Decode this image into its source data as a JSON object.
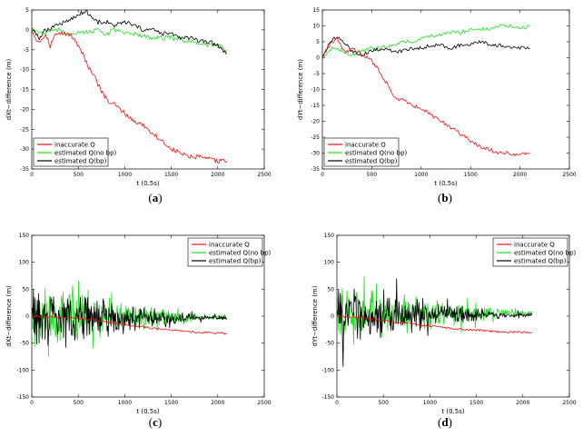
{
  "figure": {
    "panel_labels": [
      {
        "open": "(",
        "letter": "a",
        "close": ")"
      },
      {
        "open": "(",
        "letter": "b",
        "close": ")"
      },
      {
        "open": "(",
        "letter": "c",
        "close": ")"
      },
      {
        "open": "(",
        "letter": "d",
        "close": ")"
      }
    ]
  },
  "chart_data": [
    {
      "type": "line",
      "panel": "a",
      "xlabel": "t (0.5s)",
      "ylabel": "dXt−difference (m)",
      "xlim": [
        0,
        2500
      ],
      "ylim": [
        -35,
        5
      ],
      "xticks": [
        0,
        500,
        1000,
        1500,
        2000,
        2500
      ],
      "yticks": [
        5,
        0,
        -5,
        -10,
        -15,
        -20,
        -25,
        -30,
        -35
      ],
      "legend_position": "bottom-left",
      "series": [
        {
          "name": "inaccurate Q",
          "color": "#ee1111",
          "points": [
            [
              0,
              0
            ],
            [
              40,
              -2
            ],
            [
              80,
              -3
            ],
            [
              150,
              -1
            ],
            [
              200,
              -4
            ],
            [
              230,
              -2
            ],
            [
              270,
              -1
            ],
            [
              320,
              -1
            ],
            [
              400,
              -1
            ],
            [
              480,
              -3
            ],
            [
              550,
              -6
            ],
            [
              600,
              -9
            ],
            [
              650,
              -11
            ],
            [
              700,
              -13
            ],
            [
              760,
              -16
            ],
            [
              820,
              -18
            ],
            [
              900,
              -19
            ],
            [
              1000,
              -21
            ],
            [
              1100,
              -23
            ],
            [
              1200,
              -24
            ],
            [
              1300,
              -26
            ],
            [
              1400,
              -28
            ],
            [
              1500,
              -30
            ],
            [
              1600,
              -31
            ],
            [
              1700,
              -32
            ],
            [
              1800,
              -32
            ],
            [
              1900,
              -32.5
            ],
            [
              2000,
              -33
            ],
            [
              2100,
              -33
            ]
          ]
        },
        {
          "name": "estimated Q(no bp)",
          "color": "#22dd22",
          "points": [
            [
              0,
              0
            ],
            [
              100,
              -1
            ],
            [
              200,
              0
            ],
            [
              300,
              0
            ],
            [
              400,
              -1
            ],
            [
              500,
              -0.5
            ],
            [
              600,
              -0.5
            ],
            [
              700,
              0
            ],
            [
              800,
              -1
            ],
            [
              900,
              0
            ],
            [
              1000,
              -1
            ],
            [
              1100,
              -1
            ],
            [
              1200,
              -1.5
            ],
            [
              1300,
              -2
            ],
            [
              1400,
              -2
            ],
            [
              1500,
              -2
            ],
            [
              1600,
              -2.5
            ],
            [
              1700,
              -3
            ],
            [
              1800,
              -3
            ],
            [
              1900,
              -4
            ],
            [
              2000,
              -4
            ],
            [
              2100,
              -5
            ]
          ]
        },
        {
          "name": "estimated Q(bp)",
          "color": "#000000",
          "points": [
            [
              0,
              0
            ],
            [
              80,
              -2
            ],
            [
              150,
              0
            ],
            [
              250,
              1
            ],
            [
              350,
              2
            ],
            [
              450,
              3
            ],
            [
              520,
              4
            ],
            [
              580,
              5
            ],
            [
              650,
              3
            ],
            [
              700,
              2
            ],
            [
              800,
              2
            ],
            [
              900,
              1
            ],
            [
              1000,
              2
            ],
            [
              1100,
              1
            ],
            [
              1200,
              0
            ],
            [
              1300,
              0
            ],
            [
              1400,
              -1
            ],
            [
              1500,
              -1
            ],
            [
              1600,
              -2
            ],
            [
              1700,
              -2
            ],
            [
              1800,
              -3
            ],
            [
              1900,
              -3
            ],
            [
              2000,
              -4
            ],
            [
              2100,
              -6
            ]
          ]
        }
      ]
    },
    {
      "type": "line",
      "panel": "b",
      "xlabel": "t (0.5s)",
      "ylabel": "dYt−difference (m)",
      "xlim": [
        0,
        2500
      ],
      "ylim": [
        -35,
        15
      ],
      "xticks": [
        0,
        500,
        1000,
        1500,
        2000,
        2500
      ],
      "yticks": [
        15,
        10,
        5,
        0,
        -5,
        -10,
        -15,
        -20,
        -25,
        -30,
        -35
      ],
      "legend_position": "bottom-left",
      "series": [
        {
          "name": "inaccurate Q",
          "color": "#ee1111",
          "points": [
            [
              0,
              0
            ],
            [
              50,
              3
            ],
            [
              100,
              5
            ],
            [
              150,
              6
            ],
            [
              200,
              3
            ],
            [
              250,
              2
            ],
            [
              300,
              3
            ],
            [
              350,
              2
            ],
            [
              400,
              1
            ],
            [
              450,
              0
            ],
            [
              500,
              -1
            ],
            [
              550,
              -3
            ],
            [
              600,
              -6
            ],
            [
              650,
              -8
            ],
            [
              700,
              -11
            ],
            [
              750,
              -13
            ],
            [
              800,
              -13
            ],
            [
              900,
              -15
            ],
            [
              1000,
              -16
            ],
            [
              1100,
              -18
            ],
            [
              1200,
              -20
            ],
            [
              1300,
              -22
            ],
            [
              1400,
              -24
            ],
            [
              1500,
              -26
            ],
            [
              1600,
              -28
            ],
            [
              1700,
              -29
            ],
            [
              1800,
              -30
            ],
            [
              1900,
              -30
            ],
            [
              2000,
              -30.5
            ],
            [
              2100,
              -30
            ]
          ]
        },
        {
          "name": "estimated Q(no bp)",
          "color": "#22dd22",
          "points": [
            [
              0,
              0
            ],
            [
              100,
              3
            ],
            [
              200,
              2
            ],
            [
              300,
              1
            ],
            [
              400,
              2
            ],
            [
              500,
              3
            ],
            [
              600,
              3
            ],
            [
              700,
              4
            ],
            [
              800,
              5
            ],
            [
              900,
              5
            ],
            [
              1000,
              6
            ],
            [
              1100,
              7
            ],
            [
              1200,
              7
            ],
            [
              1300,
              8
            ],
            [
              1400,
              8
            ],
            [
              1500,
              9
            ],
            [
              1600,
              9
            ],
            [
              1700,
              9
            ],
            [
              1800,
              10
            ],
            [
              1900,
              10
            ],
            [
              2000,
              9
            ],
            [
              2100,
              10
            ]
          ]
        },
        {
          "name": "estimated Q(bp)",
          "color": "#000000",
          "points": [
            [
              0,
              0
            ],
            [
              60,
              4
            ],
            [
              120,
              6
            ],
            [
              180,
              6
            ],
            [
              240,
              4
            ],
            [
              300,
              2
            ],
            [
              400,
              1
            ],
            [
              500,
              2
            ],
            [
              600,
              3
            ],
            [
              700,
              2
            ],
            [
              800,
              2
            ],
            [
              900,
              3
            ],
            [
              1000,
              3
            ],
            [
              1100,
              4
            ],
            [
              1200,
              4
            ],
            [
              1300,
              3
            ],
            [
              1400,
              4
            ],
            [
              1500,
              4
            ],
            [
              1600,
              5
            ],
            [
              1700,
              4
            ],
            [
              1800,
              4
            ],
            [
              1900,
              3
            ],
            [
              2000,
              3
            ],
            [
              2100,
              3
            ]
          ]
        }
      ]
    },
    {
      "type": "line",
      "panel": "c",
      "xlabel": "t (0.5s)",
      "ylabel": "dXt−difference (m)",
      "xlim": [
        0,
        2500
      ],
      "ylim": [
        -150,
        150
      ],
      "xticks": [
        0,
        500,
        1000,
        1500,
        2000,
        2500
      ],
      "yticks": [
        150,
        100,
        50,
        0,
        -50,
        -100,
        -150
      ],
      "legend_position": "top-right",
      "series": [
        {
          "name": "inaccurate Q",
          "color": "#ee1111",
          "points": [
            [
              0,
              0
            ],
            [
              200,
              -2
            ],
            [
              400,
              -3
            ],
            [
              600,
              -6
            ],
            [
              800,
              -10
            ],
            [
              1000,
              -15
            ],
            [
              1200,
              -20
            ],
            [
              1400,
              -24
            ],
            [
              1600,
              -28
            ],
            [
              1800,
              -30
            ],
            [
              2000,
              -31
            ],
            [
              2100,
              -32
            ]
          ]
        },
        {
          "name": "estimated Q(no bp)",
          "color": "#22dd22",
          "noise": {
            "amplitude_early": 65,
            "amplitude_late": 6,
            "decay_end": 1800,
            "end": 2100,
            "seed": 11,
            "offset": -2
          }
        },
        {
          "name": "estimated Q(bp)",
          "color": "#000000",
          "noise": {
            "amplitude_early": 55,
            "amplitude_late": 5,
            "decay_end": 1800,
            "end": 2100,
            "seed": 29,
            "offset": -3
          }
        }
      ]
    },
    {
      "type": "line",
      "panel": "d",
      "xlabel": "t (0.5s)",
      "ylabel": "dYt−difference (m)",
      "xlim": [
        0,
        2500
      ],
      "ylim": [
        -150,
        150
      ],
      "xticks": [
        0,
        500,
        1000,
        1500,
        2000,
        2500
      ],
      "yticks": [
        150,
        100,
        50,
        0,
        -50,
        -100,
        -150
      ],
      "legend_position": "top-right",
      "series": [
        {
          "name": "inaccurate Q",
          "color": "#ee1111",
          "points": [
            [
              0,
              0
            ],
            [
              200,
              -3
            ],
            [
              400,
              -6
            ],
            [
              600,
              -10
            ],
            [
              800,
              -14
            ],
            [
              1000,
              -18
            ],
            [
              1200,
              -22
            ],
            [
              1400,
              -25
            ],
            [
              1600,
              -27
            ],
            [
              1800,
              -29
            ],
            [
              2000,
              -30
            ],
            [
              2100,
              -30
            ]
          ]
        },
        {
          "name": "estimated Q(no bp)",
          "color": "#22dd22",
          "noise": {
            "amplitude_early": 55,
            "amplitude_late": 8,
            "decay_end": 1800,
            "end": 2100,
            "seed": 47,
            "offset": 6
          }
        },
        {
          "name": "estimated Q(bp)",
          "color": "#000000",
          "noise": {
            "amplitude_early": 50,
            "amplitude_late": 5,
            "decay_end": 1800,
            "end": 2100,
            "seed": 83,
            "offset": 2
          }
        }
      ]
    }
  ]
}
